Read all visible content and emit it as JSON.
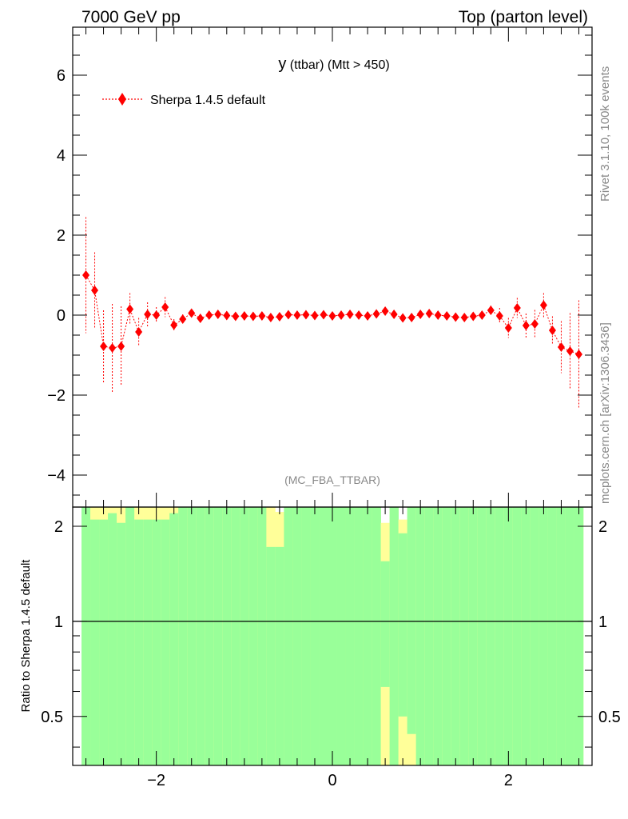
{
  "header": {
    "left": "7000 GeV pp",
    "right": "Top (parton level)"
  },
  "side_text": {
    "rivet": "Rivet 3.1.10,  100k events",
    "mcplots": "mcplots.cern.ch [arXiv:1306.3436]"
  },
  "chart_data": [
    {
      "type": "scatter",
      "title_main": "y",
      "title_rest": " (ttbar) (Mtt > 450)",
      "watermark": "(MC_FBA_TTBAR)",
      "xlabel": "",
      "ylabel": "",
      "xlim": [
        -2.95,
        2.95
      ],
      "ylim": [
        -4.8,
        7.2
      ],
      "yticks": [
        -4,
        -2,
        0,
        2,
        4,
        6
      ],
      "ytick_labels": [
        "−4",
        "−2",
        "0",
        "2",
        "4",
        "6"
      ],
      "legend_position": "top-left",
      "series": [
        {
          "name": "Sherpa 1.4.5 default",
          "color": "#ff0000",
          "x": [
            -2.8,
            -2.7,
            -2.6,
            -2.5,
            -2.4,
            -2.3,
            -2.2,
            -2.1,
            -2.0,
            -1.9,
            -1.8,
            -1.7,
            -1.6,
            -1.5,
            -1.4,
            -1.3,
            -1.2,
            -1.1,
            -1.0,
            -0.9,
            -0.8,
            -0.7,
            -0.6,
            -0.5,
            -0.4,
            -0.3,
            -0.2,
            -0.1,
            0.0,
            0.1,
            0.2,
            0.3,
            0.4,
            0.5,
            0.6,
            0.7,
            0.8,
            0.9,
            1.0,
            1.1,
            1.2,
            1.3,
            1.4,
            1.5,
            1.6,
            1.7,
            1.8,
            1.9,
            2.0,
            2.1,
            2.2,
            2.3,
            2.4,
            2.5,
            2.6,
            2.7,
            2.8
          ],
          "y": [
            1.0,
            0.62,
            -0.78,
            -0.82,
            -0.78,
            0.15,
            -0.42,
            0.02,
            0.0,
            0.2,
            -0.25,
            -0.1,
            0.05,
            -0.08,
            0.0,
            0.02,
            -0.01,
            -0.03,
            -0.02,
            -0.03,
            -0.02,
            -0.06,
            -0.04,
            0.01,
            0.0,
            0.01,
            -0.01,
            0.01,
            -0.02,
            0.0,
            0.02,
            0.0,
            -0.02,
            0.03,
            0.1,
            0.02,
            -0.07,
            -0.06,
            0.02,
            0.04,
            0.0,
            -0.02,
            -0.05,
            -0.06,
            -0.03,
            0.0,
            0.12,
            -0.02,
            -0.32,
            0.18,
            -0.26,
            -0.22,
            0.25,
            -0.38,
            -0.8,
            -0.9,
            -0.98
          ],
          "yerr": [
            1.45,
            0.95,
            0.9,
            1.1,
            1.0,
            0.4,
            0.35,
            0.3,
            0.2,
            0.25,
            0.15,
            0.12,
            0.1,
            0.08,
            0.07,
            0.07,
            0.06,
            0.06,
            0.06,
            0.06,
            0.06,
            0.06,
            0.06,
            0.05,
            0.05,
            0.05,
            0.05,
            0.05,
            0.05,
            0.05,
            0.05,
            0.05,
            0.05,
            0.06,
            0.06,
            0.06,
            0.06,
            0.06,
            0.06,
            0.06,
            0.06,
            0.07,
            0.07,
            0.08,
            0.08,
            0.1,
            0.12,
            0.2,
            0.25,
            0.25,
            0.3,
            0.35,
            0.3,
            0.35,
            0.65,
            0.95,
            1.35
          ]
        }
      ]
    },
    {
      "type": "area",
      "ylabel": "Ratio to Sherpa 1.4.5 default",
      "ylim": [
        0.35,
        2.3
      ],
      "xlim": [
        -2.95,
        2.95
      ],
      "yticks": [
        0.5,
        1,
        2
      ],
      "ytick_labels": [
        "0.5",
        "1",
        "2"
      ],
      "xticks": [
        -2,
        0,
        2
      ],
      "xtick_labels": [
        "−2",
        "0",
        "2"
      ],
      "reference_line": 1,
      "colors": {
        "inner_band": "#99ff99",
        "outer_band": "#ffff99"
      },
      "bins": {
        "edges_start": -2.85,
        "width": 0.1,
        "yellow_high": [
          2.3,
          2.3,
          2.3,
          2.3,
          2.3,
          2.3,
          2.3,
          2.3,
          2.3,
          2.3,
          2.3,
          2.3,
          2.3,
          2.3,
          2.3,
          2.3,
          2.3,
          2.3,
          2.3,
          2.3,
          2.3,
          2.3,
          2.22,
          2.3,
          2.3,
          2.3,
          2.3,
          2.3,
          2.3,
          2.3,
          2.3,
          2.3,
          2.3,
          2.3,
          2.3,
          2.3,
          2.3,
          2.3,
          2.3,
          2.3,
          2.3,
          2.3,
          2.3,
          2.3,
          2.3,
          2.3,
          2.3,
          2.3,
          2.3,
          2.3,
          2.3,
          2.3,
          2.3,
          2.3,
          2.3,
          2.3,
          2.3
        ],
        "green_high": [
          2.3,
          2.1,
          2.1,
          2.2,
          2.05,
          2.3,
          2.1,
          2.1,
          2.1,
          2.1,
          2.2,
          2.3,
          2.3,
          2.3,
          2.3,
          2.3,
          2.3,
          2.3,
          2.3,
          2.3,
          2.3,
          2.3,
          2.3,
          2.3,
          2.3,
          2.3,
          2.3,
          2.3,
          2.3,
          2.3,
          2.3,
          2.3,
          2.3,
          2.3,
          2.25,
          2.3,
          2.3,
          2.3,
          2.3,
          2.3,
          2.3,
          2.3,
          2.3,
          2.3,
          2.3,
          2.3,
          2.3,
          2.3,
          2.3,
          2.3,
          2.3,
          2.3,
          2.3,
          2.3,
          2.3,
          2.3,
          2.3
        ],
        "green_low": [
          0.35,
          0.35,
          0.35,
          0.35,
          0.35,
          0.35,
          0.35,
          0.35,
          0.35,
          0.35,
          0.35,
          0.35,
          0.35,
          0.35,
          0.35,
          0.35,
          0.35,
          0.35,
          0.35,
          0.35,
          0.35,
          0.35,
          0.35,
          0.35,
          0.35,
          0.35,
          0.35,
          0.35,
          0.35,
          0.35,
          0.35,
          0.35,
          0.35,
          0.35,
          0.35,
          0.35,
          0.35,
          0.35,
          0.35,
          0.35,
          0.35,
          0.35,
          0.35,
          0.35,
          0.35,
          0.35,
          0.35,
          0.35,
          0.35,
          0.35,
          0.35,
          0.35,
          0.35,
          0.35,
          0.35,
          0.35,
          0.35
        ],
        "yellow_low": [
          0.35,
          0.35,
          0.35,
          0.35,
          0.35,
          0.35,
          0.35,
          0.35,
          0.35,
          0.35,
          0.35,
          0.35,
          0.35,
          0.35,
          0.35,
          0.35,
          0.35,
          0.35,
          0.35,
          0.35,
          0.35,
          0.35,
          0.35,
          0.35,
          0.35,
          0.35,
          0.35,
          0.35,
          0.35,
          0.35,
          0.35,
          0.35,
          0.35,
          0.35,
          0.35,
          0.35,
          0.35,
          0.35,
          0.35,
          0.35,
          0.35,
          0.35,
          0.35,
          0.35,
          0.35,
          0.35,
          0.35,
          0.35,
          0.35,
          0.35,
          0.35,
          0.35,
          0.35,
          0.35,
          0.35,
          0.35,
          0.35
        ],
        "yellow_high_detail": [
          2.3,
          2.3,
          2.3,
          2.3,
          2.3,
          2.3,
          2.3,
          2.3,
          2.3,
          2.3,
          2.3,
          2.3,
          2.3,
          2.3,
          2.3,
          2.3,
          2.3,
          2.3,
          2.3,
          2.3,
          2.3,
          2.3,
          2.22,
          2.3,
          2.3,
          2.3,
          2.3,
          2.3,
          2.3,
          2.3,
          2.3,
          2.3,
          2.3,
          2.3,
          2.05,
          2.3,
          2.1,
          2.3,
          2.3,
          2.3,
          2.3,
          2.3,
          2.3,
          2.3,
          2.3,
          2.3,
          2.3,
          2.3,
          2.3,
          2.3,
          2.3,
          2.3,
          2.3,
          2.3,
          2.3,
          2.3,
          2.3
        ],
        "green_high_detail": [
          2.3,
          2.1,
          2.1,
          2.2,
          2.05,
          2.3,
          2.1,
          2.1,
          2.1,
          2.1,
          2.2,
          2.3,
          2.3,
          2.3,
          2.3,
          2.3,
          2.3,
          2.3,
          2.3,
          2.3,
          2.3,
          1.72,
          1.72,
          2.3,
          2.3,
          2.3,
          2.3,
          2.3,
          2.3,
          2.3,
          2.3,
          2.3,
          2.3,
          2.3,
          1.55,
          2.3,
          1.9,
          2.3,
          2.3,
          2.3,
          2.3,
          2.3,
          2.3,
          2.3,
          2.3,
          2.3,
          2.3,
          2.3,
          2.3,
          2.3,
          2.3,
          2.3,
          2.3,
          2.3,
          2.3,
          2.3,
          2.3
        ],
        "yellow_low_detail": [
          0.35,
          0.35,
          0.35,
          0.35,
          0.35,
          0.35,
          0.35,
          0.35,
          0.35,
          0.35,
          0.35,
          0.35,
          0.35,
          0.35,
          0.35,
          0.35,
          0.35,
          0.35,
          0.35,
          0.35,
          0.35,
          0.35,
          0.35,
          0.35,
          0.35,
          0.35,
          0.35,
          0.35,
          0.35,
          0.35,
          0.35,
          0.35,
          0.35,
          0.35,
          0.35,
          0.35,
          0.35,
          0.35,
          0.35,
          0.35,
          0.35,
          0.35,
          0.35,
          0.35,
          0.35,
          0.35,
          0.35,
          0.35,
          0.35,
          0.35,
          0.35,
          0.35,
          0.35,
          0.35,
          0.35,
          0.35,
          0.35
        ],
        "green_low_detail": [
          0.35,
          0.35,
          0.35,
          0.35,
          0.35,
          0.35,
          0.35,
          0.35,
          0.35,
          0.35,
          0.35,
          0.35,
          0.35,
          0.35,
          0.35,
          0.35,
          0.35,
          0.35,
          0.35,
          0.35,
          0.35,
          0.35,
          0.35,
          0.35,
          0.35,
          0.35,
          0.35,
          0.35,
          0.35,
          0.35,
          0.35,
          0.35,
          0.35,
          0.35,
          0.62,
          0.35,
          0.5,
          0.44,
          0.35,
          0.35,
          0.35,
          0.35,
          0.35,
          0.35,
          0.35,
          0.35,
          0.35,
          0.35,
          0.35,
          0.35,
          0.35,
          0.35,
          0.35,
          0.35,
          0.35,
          0.35,
          0.35
        ]
      }
    }
  ]
}
